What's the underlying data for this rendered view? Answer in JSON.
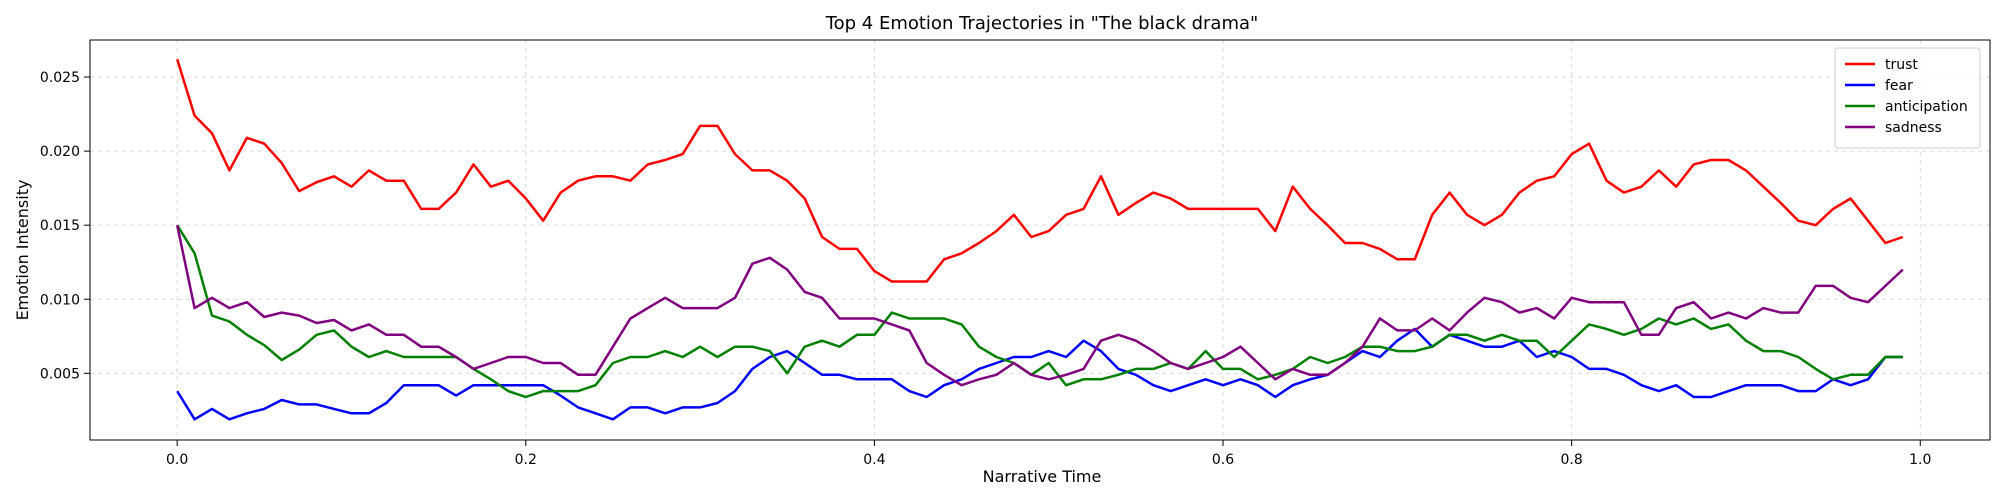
{
  "chart_data": {
    "type": "line",
    "title": "Top 4 Emotion Trajectories in \"The black drama\"",
    "xlabel": "Narrative Time",
    "ylabel": "Emotion Intensity",
    "xlim": [
      -0.05,
      1.04
    ],
    "ylim": [
      0.0005,
      0.0275
    ],
    "xticks": [
      0.0,
      0.2,
      0.4,
      0.6,
      0.8,
      1.0
    ],
    "xtick_labels": [
      "0.0",
      "0.2",
      "0.4",
      "0.6",
      "0.8",
      "1.0"
    ],
    "yticks": [
      0.005,
      0.01,
      0.015,
      0.02,
      0.025
    ],
    "ytick_labels": [
      "0.005",
      "0.010",
      "0.015",
      "0.020",
      "0.025"
    ],
    "grid": true,
    "legend_position": "top-right",
    "x": [
      0.0,
      0.01,
      0.02,
      0.03,
      0.04,
      0.05,
      0.06,
      0.07,
      0.08,
      0.09,
      0.1,
      0.11,
      0.12,
      0.13,
      0.14,
      0.15,
      0.16,
      0.17,
      0.18,
      0.19,
      0.2,
      0.21,
      0.22,
      0.23,
      0.24,
      0.25,
      0.26,
      0.27,
      0.28,
      0.29,
      0.3,
      0.31,
      0.32,
      0.33,
      0.34,
      0.35,
      0.36,
      0.37,
      0.38,
      0.39,
      0.4,
      0.41,
      0.42,
      0.43,
      0.44,
      0.45,
      0.46,
      0.47,
      0.48,
      0.49,
      0.5,
      0.51,
      0.52,
      0.53,
      0.54,
      0.55,
      0.56,
      0.57,
      0.58,
      0.59,
      0.6,
      0.61,
      0.62,
      0.63,
      0.64,
      0.65,
      0.66,
      0.67,
      0.68,
      0.69,
      0.7,
      0.71,
      0.72,
      0.73,
      0.74,
      0.75,
      0.76,
      0.77,
      0.78,
      0.79,
      0.8,
      0.81,
      0.82,
      0.83,
      0.84,
      0.85,
      0.86,
      0.87,
      0.88,
      0.89,
      0.9,
      0.91,
      0.92,
      0.93,
      0.94,
      0.95,
      0.96,
      0.97,
      0.98,
      0.99
    ],
    "series": [
      {
        "name": "trust",
        "color": "#ff0000",
        "values": [
          0.0262,
          0.0224,
          0.0212,
          0.0187,
          0.0209,
          0.0205,
          0.0192,
          0.0173,
          0.0179,
          0.0183,
          0.0176,
          0.0187,
          0.018,
          0.018,
          0.0161,
          0.0161,
          0.0172,
          0.0191,
          0.0176,
          0.018,
          0.0168,
          0.0153,
          0.0172,
          0.018,
          0.0183,
          0.0183,
          0.018,
          0.0191,
          0.0194,
          0.0198,
          0.0217,
          0.0217,
          0.0198,
          0.0187,
          0.0187,
          0.018,
          0.0168,
          0.0142,
          0.0134,
          0.0134,
          0.0119,
          0.0112,
          0.0112,
          0.0112,
          0.0127,
          0.0131,
          0.0138,
          0.0146,
          0.0157,
          0.0142,
          0.0146,
          0.0157,
          0.0161,
          0.0183,
          0.0157,
          0.0165,
          0.0172,
          0.0168,
          0.0161,
          0.0161,
          0.0161,
          0.0161,
          0.0161,
          0.0146,
          0.0176,
          0.0161,
          0.015,
          0.0138,
          0.0138,
          0.0134,
          0.0127,
          0.0127,
          0.0157,
          0.0172,
          0.0157,
          0.015,
          0.0157,
          0.0172,
          0.018,
          0.0183,
          0.0198,
          0.0205,
          0.018,
          0.0172,
          0.0176,
          0.0187,
          0.0176,
          0.0191,
          0.0194,
          0.0194,
          0.0187,
          0.0176,
          0.0165,
          0.0153,
          0.015,
          0.0161,
          0.0168,
          0.0153,
          0.0138,
          0.0142
        ]
      },
      {
        "name": "fear",
        "color": "#0000ff",
        "values": [
          0.0038,
          0.0019,
          0.0026,
          0.0019,
          0.0023,
          0.0026,
          0.0032,
          0.0029,
          0.0029,
          0.0026,
          0.0023,
          0.0023,
          0.003,
          0.0042,
          0.0042,
          0.0042,
          0.0035,
          0.0042,
          0.0042,
          0.0042,
          0.0042,
          0.0042,
          0.0035,
          0.0027,
          0.0023,
          0.0019,
          0.0027,
          0.0027,
          0.0023,
          0.0027,
          0.0027,
          0.003,
          0.0038,
          0.0053,
          0.0061,
          0.0065,
          0.0057,
          0.0049,
          0.0049,
          0.0046,
          0.0046,
          0.0046,
          0.0038,
          0.0034,
          0.0042,
          0.0046,
          0.0053,
          0.0057,
          0.0061,
          0.0061,
          0.0065,
          0.0061,
          0.0072,
          0.0065,
          0.0053,
          0.0049,
          0.0042,
          0.0038,
          0.0042,
          0.0046,
          0.0042,
          0.0046,
          0.0042,
          0.0034,
          0.0042,
          0.0046,
          0.0049,
          0.0057,
          0.0065,
          0.0061,
          0.0072,
          0.008,
          0.0068,
          0.0076,
          0.0072,
          0.0068,
          0.0068,
          0.0072,
          0.0061,
          0.0065,
          0.0061,
          0.0053,
          0.0053,
          0.0049,
          0.0042,
          0.0038,
          0.0042,
          0.0034,
          0.0034,
          0.0038,
          0.0042,
          0.0042,
          0.0042,
          0.0038,
          0.0038,
          0.0046,
          0.0042,
          0.0046,
          0.0061,
          0.0061
        ]
      },
      {
        "name": "anticipation",
        "color": "#008000",
        "values": [
          0.015,
          0.0131,
          0.0089,
          0.0085,
          0.0076,
          0.0069,
          0.0059,
          0.0066,
          0.0076,
          0.0079,
          0.0068,
          0.0061,
          0.0065,
          0.0061,
          0.0061,
          0.0061,
          0.0061,
          0.0053,
          0.0046,
          0.0038,
          0.0034,
          0.0038,
          0.0038,
          0.0038,
          0.0042,
          0.0057,
          0.0061,
          0.0061,
          0.0065,
          0.0061,
          0.0068,
          0.0061,
          0.0068,
          0.0068,
          0.0065,
          0.005,
          0.0068,
          0.0072,
          0.0068,
          0.0076,
          0.0076,
          0.0091,
          0.0087,
          0.0087,
          0.0087,
          0.0083,
          0.0068,
          0.0061,
          0.0057,
          0.0049,
          0.0057,
          0.0042,
          0.0046,
          0.0046,
          0.0049,
          0.0053,
          0.0053,
          0.0057,
          0.0053,
          0.0065,
          0.0053,
          0.0053,
          0.0046,
          0.0049,
          0.0053,
          0.0061,
          0.0057,
          0.0061,
          0.0068,
          0.0068,
          0.0065,
          0.0065,
          0.0068,
          0.0076,
          0.0076,
          0.0072,
          0.0076,
          0.0072,
          0.0072,
          0.0061,
          0.0072,
          0.0083,
          0.008,
          0.0076,
          0.008,
          0.0087,
          0.0083,
          0.0087,
          0.008,
          0.0083,
          0.0072,
          0.0065,
          0.0065,
          0.0061,
          0.0053,
          0.0046,
          0.0049,
          0.0049,
          0.0061,
          0.0061
        ]
      },
      {
        "name": "sadness",
        "color": "#800080",
        "values": [
          0.015,
          0.0094,
          0.0101,
          0.0094,
          0.0098,
          0.0088,
          0.0091,
          0.0089,
          0.0084,
          0.0086,
          0.0079,
          0.0083,
          0.0076,
          0.0076,
          0.0068,
          0.0068,
          0.0061,
          0.0053,
          0.0057,
          0.0061,
          0.0061,
          0.0057,
          0.0057,
          0.0049,
          0.0049,
          0.0068,
          0.0087,
          0.0094,
          0.0101,
          0.0094,
          0.0094,
          0.0094,
          0.0101,
          0.0124,
          0.0128,
          0.012,
          0.0105,
          0.0101,
          0.0087,
          0.0087,
          0.0087,
          0.0083,
          0.0079,
          0.0057,
          0.0049,
          0.0042,
          0.0046,
          0.0049,
          0.0057,
          0.0049,
          0.0046,
          0.0049,
          0.0053,
          0.0072,
          0.0076,
          0.0072,
          0.0065,
          0.0057,
          0.0053,
          0.0057,
          0.0061,
          0.0068,
          0.0057,
          0.0046,
          0.0053,
          0.0049,
          0.0049,
          0.0057,
          0.0068,
          0.0087,
          0.0079,
          0.0079,
          0.0087,
          0.0079,
          0.0091,
          0.0101,
          0.0098,
          0.0091,
          0.0094,
          0.0087,
          0.0101,
          0.0098,
          0.0098,
          0.0098,
          0.0076,
          0.0076,
          0.0094,
          0.0098,
          0.0087,
          0.0091,
          0.0087,
          0.0094,
          0.0091,
          0.0091,
          0.0109,
          0.0109,
          0.0101,
          0.0098,
          0.0109,
          0.012
        ]
      }
    ]
  }
}
